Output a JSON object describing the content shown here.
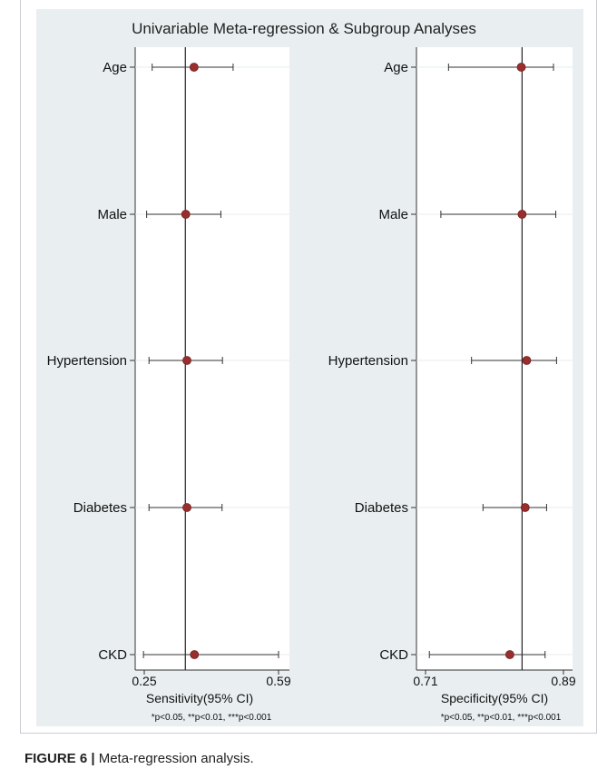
{
  "figure": {
    "caption_label": "FIGURE 6 |",
    "caption_text": " Meta-regression analysis."
  },
  "chart_data": [
    {
      "type": "scatter",
      "subtype": "forest-plot",
      "title": "Univariable Meta-regression & Subgroup Analyses",
      "categories": [
        "Age",
        "Male",
        "Hypertension",
        "Diabetes",
        "CKD"
      ],
      "estimate": [
        0.376,
        0.355,
        0.358,
        0.358,
        0.377
      ],
      "lower": [
        0.27,
        0.256,
        0.262,
        0.262,
        0.248
      ],
      "upper": [
        0.475,
        0.444,
        0.448,
        0.447,
        0.59
      ],
      "reference_line": 0.354,
      "xlabel": "Sensitivity(95% CI)",
      "xticks": [
        "0.25",
        "0.59"
      ],
      "xlim": [
        0.25,
        0.59
      ],
      "note": "*p<0.05, **p<0.01, ***p<0.001",
      "grid": false,
      "colors": {
        "point": "#9b2d2d",
        "panel": "#e9eff1",
        "plot_bg": "#ffffff",
        "line": "#333333"
      }
    },
    {
      "type": "scatter",
      "subtype": "forest-plot",
      "title": "",
      "categories": [
        "Age",
        "Male",
        "Hypertension",
        "Diabetes",
        "CKD"
      ],
      "estimate": [
        0.835,
        0.836,
        0.842,
        0.84,
        0.82
      ],
      "lower": [
        0.74,
        0.73,
        0.77,
        0.785,
        0.715
      ],
      "upper": [
        0.877,
        0.88,
        0.881,
        0.868,
        0.866
      ],
      "reference_line": 0.836,
      "xlabel": "Specificity(95% CI)",
      "xticks": [
        "0.71",
        "0.89"
      ],
      "xlim": [
        0.71,
        0.89
      ],
      "note": "*p<0.05, **p<0.01, ***p<0.001",
      "grid": false,
      "colors": {
        "point": "#9b2d2d",
        "panel": "#e9eff1",
        "plot_bg": "#ffffff",
        "line": "#333333"
      }
    }
  ]
}
